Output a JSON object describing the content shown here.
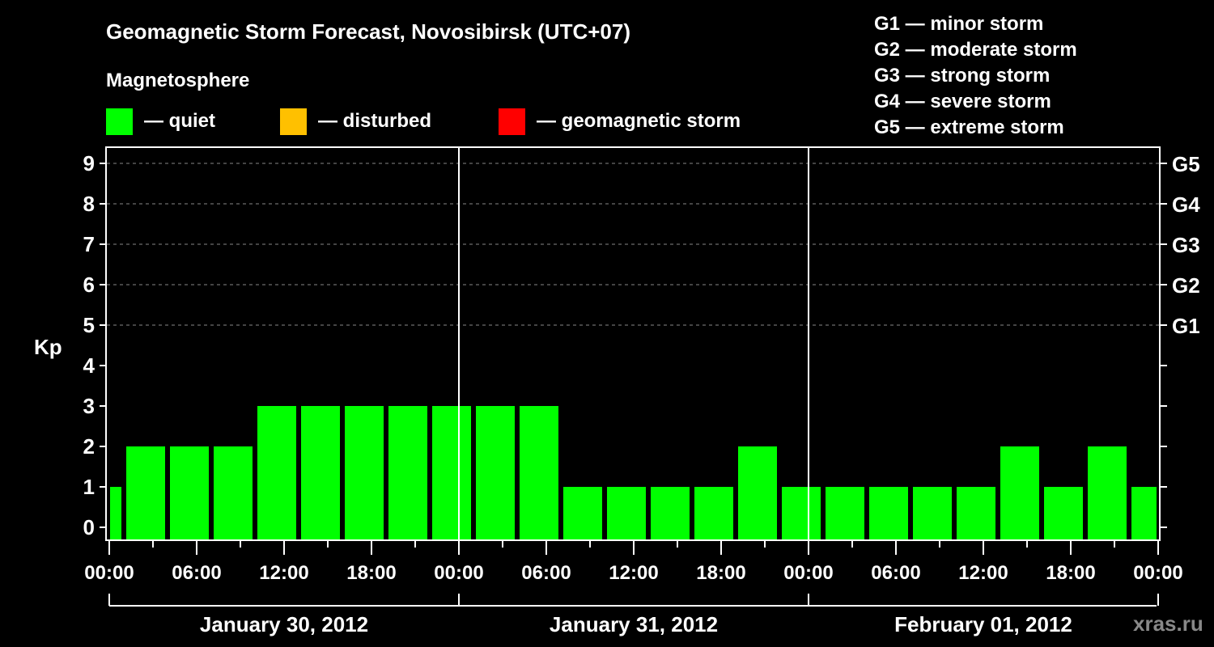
{
  "header": {
    "title": "Geomagnetic Storm Forecast, Novosibirsk (UTC+07)",
    "subtitle": "Magnetosphere"
  },
  "legend": [
    {
      "label": "— quiet",
      "color": "#00ff00"
    },
    {
      "label": "— disturbed",
      "color": "#ffc000"
    },
    {
      "label": "— geomagnetic storm",
      "color": "#ff0000"
    }
  ],
  "storm_scale": [
    "G1 — minor storm",
    "G2 — moderate storm",
    "G3 — strong storm",
    "G4 — severe storm",
    "G5 — extreme storm"
  ],
  "axes": {
    "ylabel": "Kp",
    "y_ticks": [
      "0",
      "1",
      "2",
      "3",
      "4",
      "5",
      "6",
      "7",
      "8",
      "9"
    ],
    "right_ticks": [
      {
        "kp": 5,
        "label": "G1"
      },
      {
        "kp": 6,
        "label": "G2"
      },
      {
        "kp": 7,
        "label": "G3"
      },
      {
        "kp": 8,
        "label": "G4"
      },
      {
        "kp": 9,
        "label": "G5"
      }
    ],
    "x_ticks": [
      "00:00",
      "06:00",
      "12:00",
      "18:00",
      "00:00",
      "06:00",
      "12:00",
      "18:00",
      "00:00",
      "06:00",
      "12:00",
      "18:00",
      "00:00"
    ],
    "dates": [
      "January 30, 2012",
      "January 31, 2012",
      "February 01, 2012"
    ]
  },
  "watermark": "xras.ru",
  "chart_data": {
    "type": "bar",
    "title": "Geomagnetic Storm Forecast, Novosibirsk (UTC+07)",
    "xlabel": "",
    "ylabel": "Kp",
    "ylim": [
      0,
      9
    ],
    "grid": "dashed horizontal lines at Kp 5-9",
    "bar_color": "#00ff00",
    "categories": [
      "Jan 30 00:00",
      "Jan 30 01:00",
      "Jan 30 04:00",
      "Jan 30 07:00",
      "Jan 30 10:00",
      "Jan 30 13:00",
      "Jan 30 16:00",
      "Jan 30 19:00",
      "Jan 30 22:00",
      "Jan 31 01:00",
      "Jan 31 04:00",
      "Jan 31 07:00",
      "Jan 31 10:00",
      "Jan 31 13:00",
      "Jan 31 16:00",
      "Jan 31 19:00",
      "Jan 31 22:00",
      "Feb 01 01:00",
      "Feb 01 04:00",
      "Feb 01 07:00",
      "Feb 01 10:00",
      "Feb 01 13:00",
      "Feb 01 16:00",
      "Feb 01 19:00",
      "Feb 01 22:00"
    ],
    "values": [
      1,
      2,
      2,
      2,
      3,
      3,
      3,
      3,
      3,
      3,
      3,
      1,
      1,
      1,
      1,
      2,
      1,
      1,
      1,
      1,
      1,
      2,
      1,
      2,
      1
    ],
    "legend": [
      "quiet",
      "disturbed",
      "geomagnetic storm"
    ]
  }
}
